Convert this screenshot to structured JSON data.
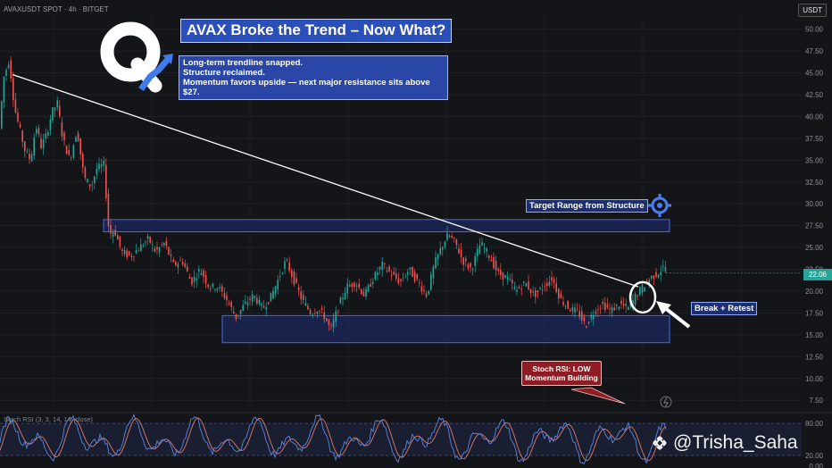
{
  "header": {
    "symbol": "AVAXUSDT SPOT · 4h · BITGET",
    "currency": "USDT",
    "last_price": "22.06"
  },
  "title": "AVAX Broke the Trend – Now What?",
  "subtitle_lines": [
    "Long-term trendline snapped.",
    "Structure reclaimed.",
    "Momentum favors upside — next major resistance sits above $27."
  ],
  "annotations": {
    "target": "Target Range from Structure",
    "break_retest": "Break + Retest",
    "rsi_line1": "Stoch RSI: LOW",
    "rsi_line2": "Momentum Building"
  },
  "rsi_indicator_label": "Stoch RSI (3, 3, 14, 14, close)",
  "watermark": "@Trisha_Saha",
  "colors": {
    "background": "#141519",
    "bull": "#26a69a",
    "bear": "#ef5350",
    "zone_fill": "#1b2d72",
    "zone_border": "#4a68e0",
    "trendline": "#ffffff",
    "rsi_k": "#5b86e5",
    "rsi_d": "#e07a6a",
    "accent_blue": "#2b4fb8",
    "callout_red": "#8e1c22"
  },
  "icons": [
    "q-logo-icon",
    "crosshair-target-icon",
    "arrow-pointer-icon",
    "binance-logo-icon",
    "lightning-icon"
  ],
  "chart_data": {
    "type": "candlestick",
    "symbol": "AVAXUSDT",
    "timeframe": "4h",
    "y_ticks": [
      50.0,
      47.5,
      45.0,
      42.5,
      40.0,
      37.5,
      35.0,
      32.5,
      30.0,
      27.5,
      25.0,
      22.5,
      20.0,
      17.5,
      15.0,
      12.5,
      10.0,
      7.5
    ],
    "ylim": [
      6.5,
      51.5
    ],
    "price_path": [
      [
        0,
        37.5
      ],
      [
        6,
        44.5
      ],
      [
        12,
        46.5
      ],
      [
        18,
        41.0
      ],
      [
        24,
        38.5
      ],
      [
        30,
        36.0
      ],
      [
        36,
        35.0
      ],
      [
        42,
        39.0
      ],
      [
        48,
        36.5
      ],
      [
        54,
        38.0
      ],
      [
        60,
        40.5
      ],
      [
        66,
        41.5
      ],
      [
        72,
        37.5
      ],
      [
        80,
        35.0
      ],
      [
        88,
        38.5
      ],
      [
        96,
        33.0
      ],
      [
        104,
        32.0
      ],
      [
        110,
        34.0
      ],
      [
        118,
        34.5
      ],
      [
        124,
        26.5
      ],
      [
        130,
        27.0
      ],
      [
        138,
        24.5
      ],
      [
        148,
        24.0
      ],
      [
        158,
        25.0
      ],
      [
        168,
        26.0
      ],
      [
        176,
        24.5
      ],
      [
        186,
        25.5
      ],
      [
        196,
        23.0
      ],
      [
        206,
        23.5
      ],
      [
        216,
        21.0
      ],
      [
        226,
        22.5
      ],
      [
        236,
        20.5
      ],
      [
        246,
        20.5
      ],
      [
        256,
        19.0
      ],
      [
        266,
        17.0
      ],
      [
        276,
        18.5
      ],
      [
        286,
        19.5
      ],
      [
        296,
        18.0
      ],
      [
        306,
        19.5
      ],
      [
        316,
        22.0
      ],
      [
        322,
        23.5
      ],
      [
        330,
        21.5
      ],
      [
        340,
        19.0
      ],
      [
        350,
        17.5
      ],
      [
        358,
        18.0
      ],
      [
        366,
        17.0
      ],
      [
        372,
        15.5
      ],
      [
        380,
        18.0
      ],
      [
        390,
        20.5
      ],
      [
        400,
        21.0
      ],
      [
        410,
        19.5
      ],
      [
        420,
        21.5
      ],
      [
        430,
        23.0
      ],
      [
        440,
        22.0
      ],
      [
        450,
        21.0
      ],
      [
        460,
        22.5
      ],
      [
        470,
        21.0
      ],
      [
        480,
        19.5
      ],
      [
        488,
        23.0
      ],
      [
        496,
        25.0
      ],
      [
        504,
        26.5
      ],
      [
        512,
        25.5
      ],
      [
        520,
        23.5
      ],
      [
        530,
        22.5
      ],
      [
        540,
        25.5
      ],
      [
        550,
        24.0
      ],
      [
        560,
        22.0
      ],
      [
        570,
        21.5
      ],
      [
        580,
        20.0
      ],
      [
        590,
        21.0
      ],
      [
        600,
        19.5
      ],
      [
        610,
        20.5
      ],
      [
        620,
        21.5
      ],
      [
        630,
        19.0
      ],
      [
        640,
        18.0
      ],
      [
        650,
        17.5
      ],
      [
        658,
        16.0
      ],
      [
        666,
        17.5
      ],
      [
        676,
        18.5
      ],
      [
        686,
        17.8
      ],
      [
        696,
        18.5
      ],
      [
        706,
        18.0
      ],
      [
        714,
        19.5
      ],
      [
        722,
        20.5
      ],
      [
        730,
        21.5
      ],
      [
        738,
        22.0
      ],
      [
        746,
        22.8
      ]
    ],
    "trendline": [
      [
        14,
        44.8
      ],
      [
        715,
        20.5
      ]
    ],
    "zones": [
      {
        "name": "target_range",
        "y_top": 28.2,
        "y_bottom": 26.8,
        "x_start": 116,
        "x_end": 750
      },
      {
        "name": "support_range",
        "y_top": 17.2,
        "y_bottom": 14.1,
        "x_start": 249,
        "x_end": 750
      }
    ],
    "rsi_range": [
      0,
      100
    ],
    "rsi_ticks": [
      80.0,
      20.0,
      0.0
    ],
    "grid": true
  }
}
